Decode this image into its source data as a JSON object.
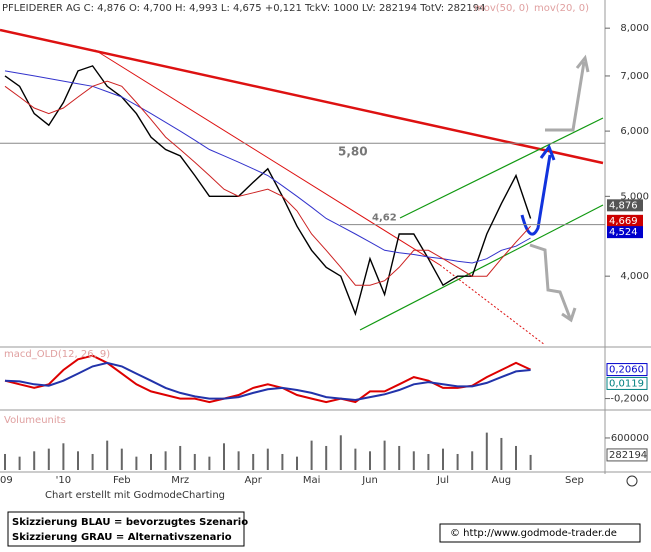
{
  "chart_data": {
    "type": "line",
    "header": "PFLEIDERER AG C: 4,876 O: 4,700 H: 4,993 L: 4,675 +0,121 TckV: 1000 LV: 282194 TotV: 282194",
    "categories": [
      "'09",
      null,
      null,
      null,
      "'10",
      null,
      null,
      null,
      "Feb",
      null,
      null,
      null,
      "Mrz",
      null,
      null,
      null,
      null,
      "Apr",
      null,
      null,
      null,
      "Mai",
      null,
      null,
      null,
      "Jun",
      null,
      null,
      null,
      null,
      "Jul",
      null,
      null,
      null,
      "Aug",
      null,
      null,
      null,
      null,
      "Sep",
      null
    ],
    "series": [
      {
        "name": "PFLEIDERER AG",
        "color": "#000000",
        "values": [
          7.0,
          6.8,
          6.3,
          6.1,
          6.5,
          7.1,
          7.2,
          6.8,
          6.6,
          6.3,
          5.9,
          5.7,
          5.6,
          5.3,
          5.0,
          5.0,
          5.0,
          5.2,
          5.4,
          5.0,
          4.6,
          4.3,
          4.1,
          4.0,
          3.6,
          4.2,
          3.8,
          4.5,
          4.5,
          4.2,
          3.9,
          4.0,
          4.0,
          4.5,
          4.9,
          5.3,
          4.7,
          null,
          null,
          null,
          null
        ]
      },
      {
        "name": "mov(50, 0)",
        "color": "#3333cc",
        "values": [
          7.1,
          7.05,
          7.0,
          6.95,
          6.9,
          6.85,
          6.8,
          6.7,
          6.6,
          6.45,
          6.3,
          6.15,
          6.0,
          5.85,
          5.7,
          5.6,
          5.5,
          5.4,
          5.3,
          5.15,
          5.0,
          4.85,
          4.7,
          4.6,
          4.5,
          4.4,
          4.3,
          4.27,
          4.25,
          4.22,
          4.2,
          4.17,
          4.15,
          4.2,
          4.3,
          4.35,
          4.45,
          null,
          null,
          null,
          null
        ]
      },
      {
        "name": "mov(20, 0)",
        "color": "#cc2222",
        "values": [
          6.8,
          6.6,
          6.4,
          6.3,
          6.4,
          6.6,
          6.8,
          6.9,
          6.8,
          6.5,
          6.2,
          5.9,
          5.7,
          5.5,
          5.3,
          5.1,
          5.0,
          5.05,
          5.1,
          5.0,
          4.8,
          4.5,
          4.3,
          4.1,
          3.9,
          3.9,
          3.95,
          4.1,
          4.3,
          4.3,
          4.2,
          4.1,
          4.0,
          4.0,
          4.2,
          4.4,
          4.6,
          null,
          null,
          null,
          null
        ]
      }
    ],
    "log_scale": true,
    "ylim": [
      3.3,
      8.3
    ],
    "yticks": [
      {
        "value": 4,
        "label": "4,000"
      },
      {
        "value": 5,
        "label": "5,000"
      },
      {
        "value": 6,
        "label": "6,000"
      },
      {
        "value": 7,
        "label": "7,000"
      },
      {
        "value": 8,
        "label": "8,000"
      }
    ],
    "levels": [
      {
        "value": 5.8,
        "label": "5,80"
      },
      {
        "value": 4.62,
        "label": "4,62"
      }
    ],
    "price_labels": [
      {
        "value": 4.876,
        "label": "4,876",
        "color": "#555555"
      },
      {
        "value": 4.669,
        "label": "4,669",
        "color": "#cc0000"
      },
      {
        "value": 4.524,
        "label": "4,524",
        "color": "#0000cc"
      }
    ],
    "macd": {
      "title": "macd_OLD(12, 26, 9)",
      "ylim": [
        -0.29,
        0.48
      ],
      "yticks": [
        {
          "value": -0.2,
          "label": "-0,2000"
        }
      ],
      "series": [
        {
          "color": "#dd0000",
          "values": [
            0.05,
            0.0,
            -0.05,
            0.0,
            0.2,
            0.35,
            0.4,
            0.3,
            0.15,
            0.0,
            -0.1,
            -0.15,
            -0.2,
            -0.2,
            -0.25,
            -0.2,
            -0.15,
            -0.05,
            0.0,
            -0.05,
            -0.15,
            -0.2,
            -0.25,
            -0.2,
            -0.25,
            -0.1,
            -0.1,
            0.0,
            0.1,
            0.05,
            -0.05,
            -0.05,
            -0.02,
            0.1,
            0.2,
            0.3,
            0.206,
            null,
            null,
            null,
            null
          ]
        },
        {
          "color": "#2233aa",
          "values": [
            0.05,
            0.04,
            0.0,
            -0.02,
            0.05,
            0.15,
            0.25,
            0.3,
            0.25,
            0.15,
            0.05,
            -0.05,
            -0.12,
            -0.17,
            -0.2,
            -0.2,
            -0.18,
            -0.12,
            -0.07,
            -0.05,
            -0.08,
            -0.12,
            -0.18,
            -0.2,
            -0.22,
            -0.18,
            -0.14,
            -0.08,
            0.0,
            0.03,
            0.0,
            -0.03,
            -0.03,
            0.02,
            0.1,
            0.18,
            0.2,
            null,
            null,
            null,
            null
          ]
        }
      ],
      "labels": [
        {
          "value": 0.206,
          "label": "0,2060",
          "color": "#0000cc"
        },
        {
          "value": 0.0119,
          "label": "0,0119",
          "color": "#008080"
        }
      ]
    },
    "volume": {
      "title": "Volumeunits",
      "color": "#666666",
      "ylim": [
        0,
        1030000
      ],
      "yticks": [
        600000
      ],
      "values": [
        300000,
        250000,
        350000,
        400000,
        500000,
        350000,
        300000,
        550000,
        400000,
        250000,
        300000,
        350000,
        450000,
        300000,
        250000,
        500000,
        350000,
        300000,
        400000,
        300000,
        250000,
        550000,
        450000,
        650000,
        400000,
        350000,
        550000,
        450000,
        350000,
        300000,
        400000,
        300000,
        350000,
        700000,
        600000,
        450000,
        282194,
        null,
        null,
        null,
        null
      ],
      "last_label": {
        "value": 282194,
        "label": "282194"
      }
    },
    "footer": "Chart erstellt mit GodmodeCharting",
    "legend_box": [
      "Skizzierung BLAU = bevorzugtes Szenario",
      "Skizzierung GRAU = Alternativszenario"
    ],
    "copyright": "© http://www.godmode-trader.de"
  }
}
